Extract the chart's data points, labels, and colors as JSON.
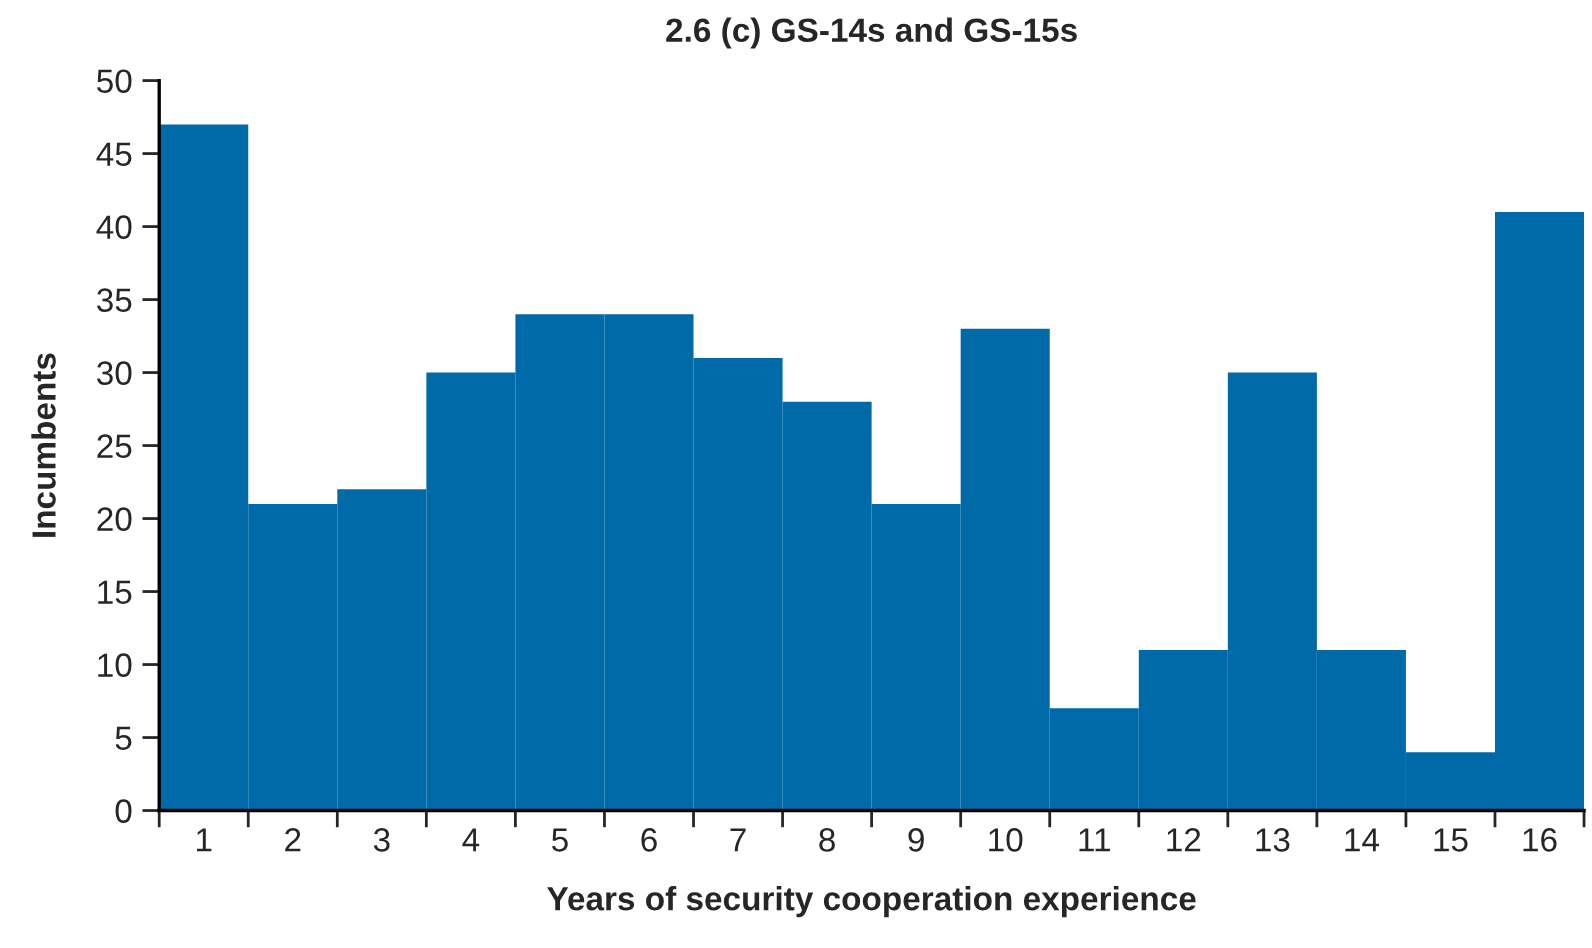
{
  "chart_data": {
    "type": "bar",
    "title": "2.6 (c) GS-14s and GS-15s",
    "xlabel": "Years of security cooperation experience",
    "ylabel": "Incumbents",
    "categories": [
      "1",
      "2",
      "3",
      "4",
      "5",
      "6",
      "7",
      "8",
      "9",
      "10",
      "11",
      "12",
      "13",
      "14",
      "15",
      "16"
    ],
    "values": [
      47,
      21,
      22,
      30,
      34,
      34,
      31,
      28,
      21,
      33,
      7,
      11,
      30,
      11,
      4,
      41
    ],
    "color": "#006aa8",
    "ylim": [
      0,
      50
    ],
    "yticks": [
      0,
      5,
      10,
      15,
      20,
      25,
      30,
      35,
      40,
      45,
      50
    ],
    "grid": false,
    "legend": false
  }
}
